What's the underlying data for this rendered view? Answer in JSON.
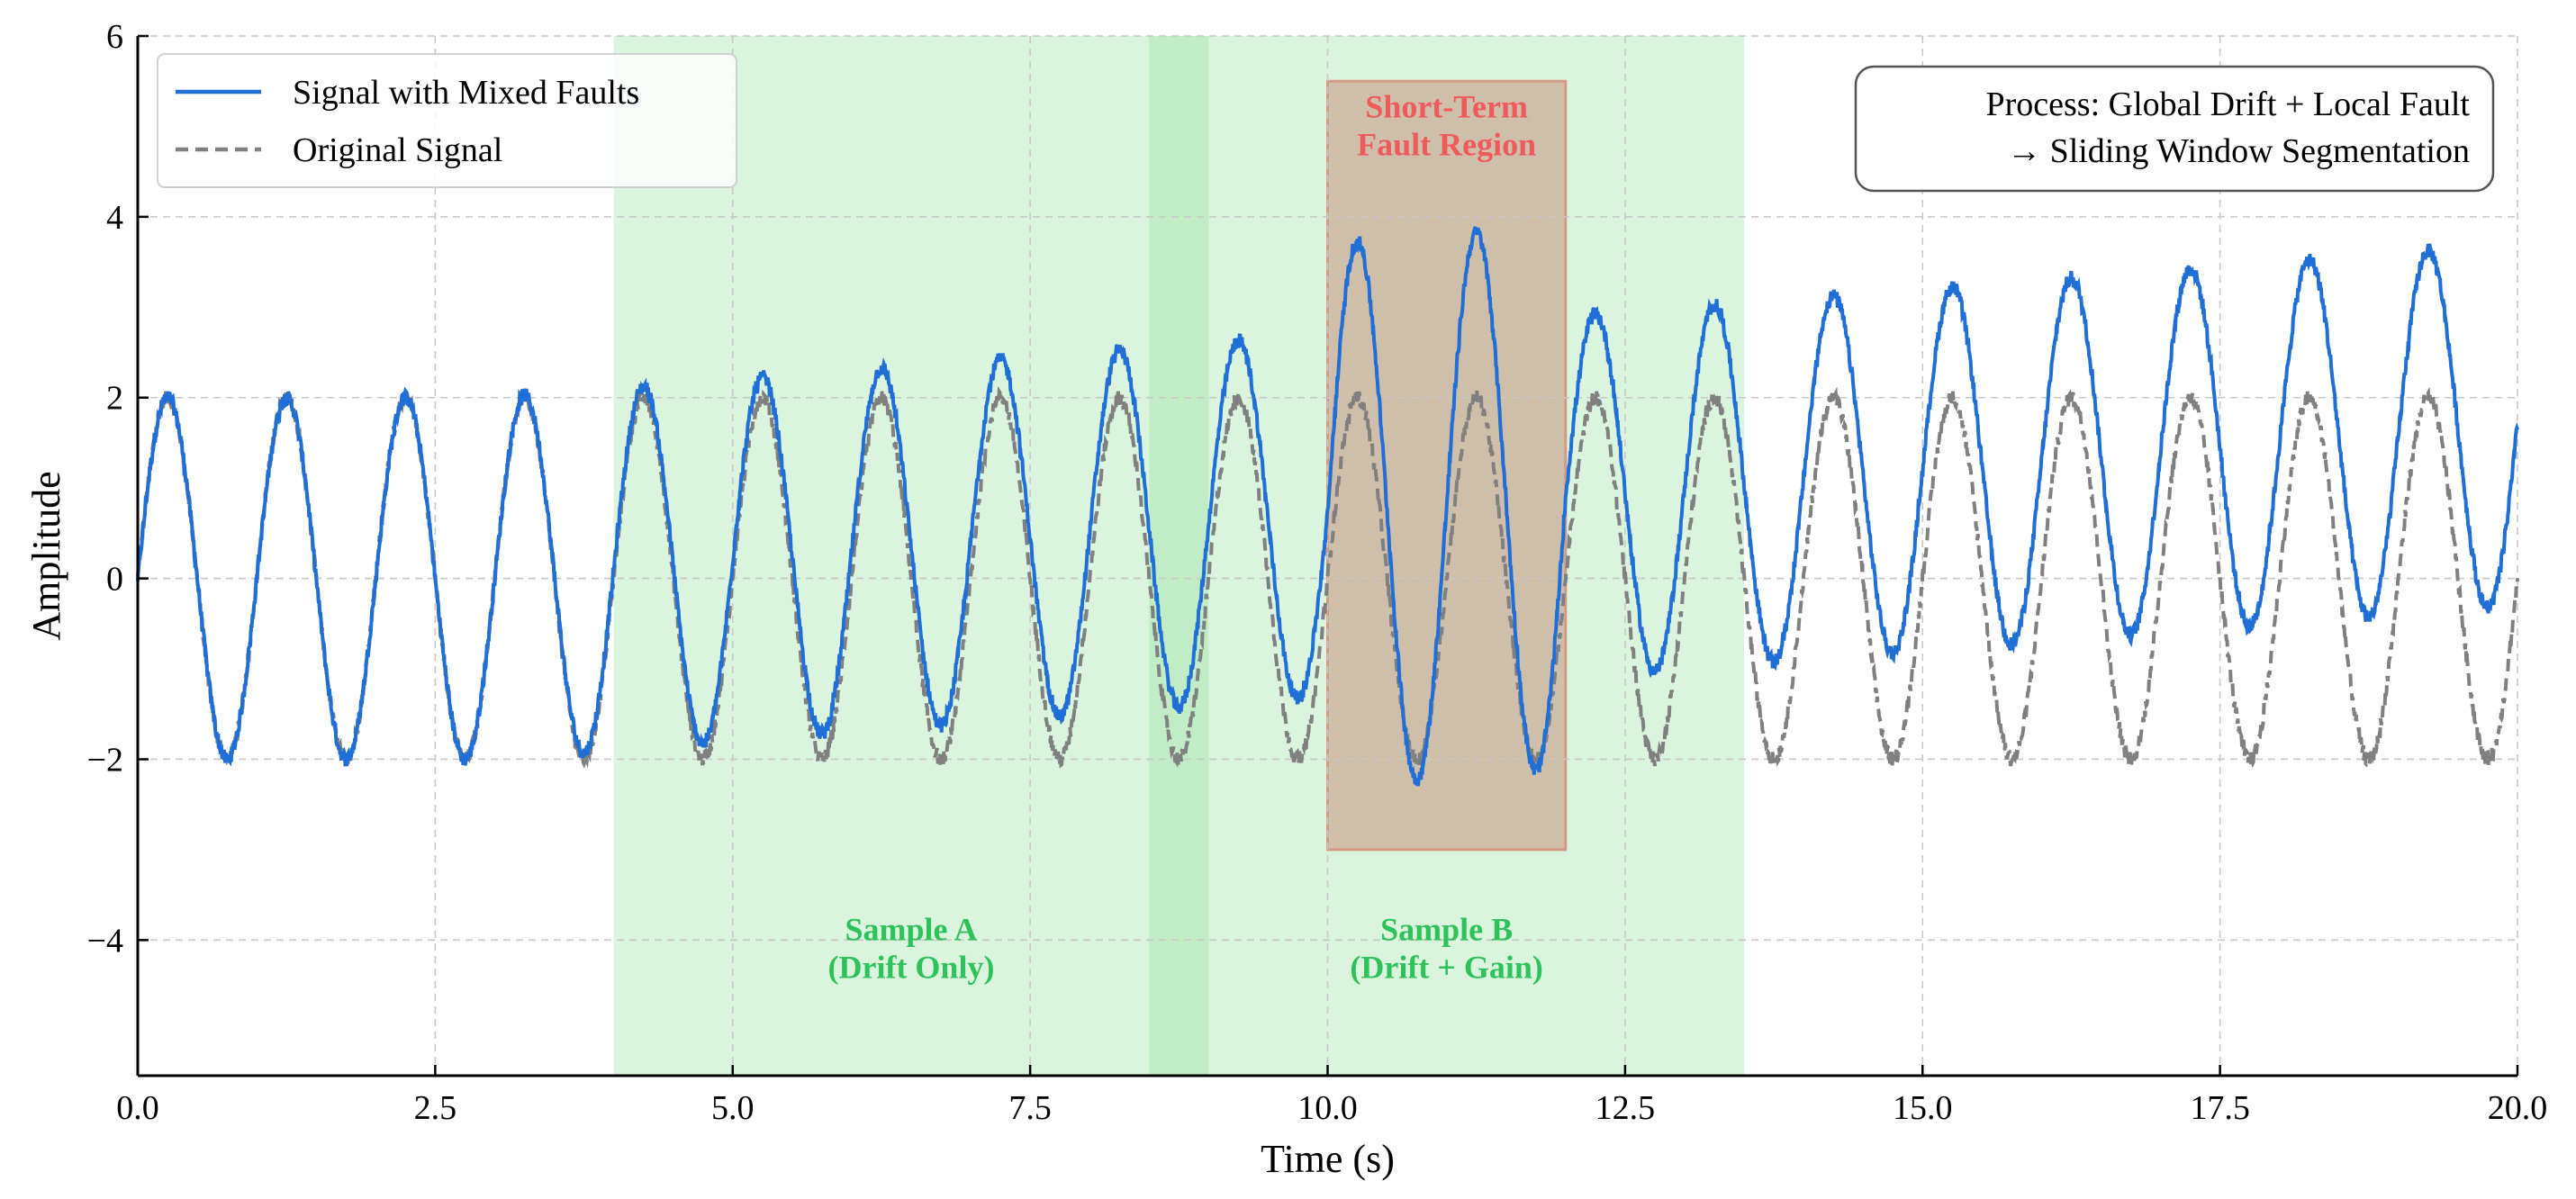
{
  "chart_data": {
    "type": "line",
    "xlabel": "Time (s)",
    "ylabel": "Amplitude",
    "xlim": [
      0,
      20
    ],
    "ylim": [
      -5.5,
      6
    ],
    "grid": true,
    "xticks": [
      0,
      2.5,
      5,
      7.5,
      10,
      12.5,
      15,
      17.5,
      20
    ],
    "xtick_labels": [
      "0.0",
      "2.5",
      "5.0",
      "7.5",
      "10.0",
      "12.5",
      "15.0",
      "17.5",
      "20.0"
    ],
    "yticks": [
      -4,
      -2,
      0,
      2,
      4,
      6
    ],
    "ytick_labels": [
      "−4",
      "−2",
      "0",
      "2",
      "4",
      "6"
    ],
    "legend": {
      "placement": "top-left",
      "entries": [
        {
          "label": "Signal with Mixed Faults",
          "color": "#1f6fd6",
          "style": "solid"
        },
        {
          "label": "Original Signal",
          "color": "#808080",
          "style": "dashed"
        }
      ]
    },
    "series": [
      {
        "name": "Signal with Mixed Faults",
        "color": "#1f6fd6",
        "style": "solid",
        "model": "2*sin(2*pi*1.0*t) + drift(t) + gain fault",
        "frequency_hz": 1.0,
        "base_amplitude": 2.0,
        "drift_start_s": 3.0,
        "drift_end_s": 20.0,
        "drift_end_value": 1.7,
        "gain_fault_start_s": 10.0,
        "gain_fault_end_s": 12.0,
        "gain_factor": 1.5,
        "noise": 0.08
      },
      {
        "name": "Original Signal",
        "color": "#808080",
        "style": "dashed",
        "model": "2*sin(2*pi*1.0*t)",
        "frequency_hz": 1.0,
        "base_amplitude": 2.0,
        "noise": 0.08
      }
    ],
    "regions": [
      {
        "name": "Sample A",
        "x_start": 4.0,
        "x_end": 9.0,
        "color": "#7ed98a",
        "opacity": 0.28,
        "label_lines": [
          "Sample A",
          "(Drift Only)"
        ],
        "label_x": 6.5,
        "label_y": -4.0
      },
      {
        "name": "Sample B",
        "x_start": 8.5,
        "x_end": 13.5,
        "color": "#7ed98a",
        "opacity": 0.28,
        "label_lines": [
          "Sample B",
          "(Drift + Gain)"
        ],
        "label_x": 11.0,
        "label_y": -4.0
      },
      {
        "name": "Short-Term Fault Region",
        "x_start": 10.0,
        "x_end": 12.0,
        "y_start": -3.0,
        "y_end": 5.5,
        "color": "#c79a86",
        "opacity": 0.6,
        "label_lines": [
          "Short-Term",
          "Fault Region"
        ],
        "label_x": 11.0,
        "label_y": 5.1
      }
    ],
    "annotation": {
      "placement": "top-right",
      "lines": [
        "Process: Global Drift + Local Fault",
        "→ Sliding Window Segmentation"
      ]
    }
  }
}
